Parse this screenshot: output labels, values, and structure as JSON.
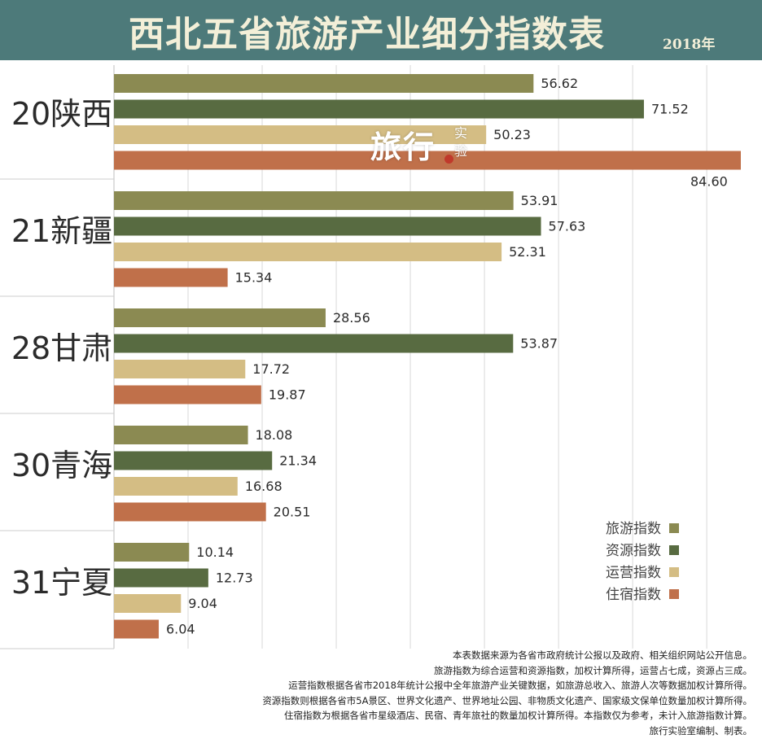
{
  "header": {
    "title": "西北五省旅游产业细分指数表",
    "year": "2018年",
    "background": "#4d7a7a"
  },
  "watermark": {
    "main": "旅行",
    "sub1": "实",
    "sub2": "验"
  },
  "chart_data": {
    "type": "bar",
    "orientation": "horizontal",
    "title": "西北五省旅游产业细分指数表",
    "categories": [
      "20陕西",
      "21新疆",
      "28甘肃",
      "30青海",
      "31宁夏"
    ],
    "series": [
      {
        "name": "旅游指数",
        "color": "#8b8a52",
        "values": [
          56.62,
          53.91,
          28.56,
          18.08,
          10.14
        ],
        "labels": [
          "56.62",
          "53.91",
          "28.56",
          "18.08",
          "10.14"
        ]
      },
      {
        "name": "资源指数",
        "color": "#586b41",
        "values": [
          71.52,
          57.63,
          53.87,
          21.34,
          12.73
        ],
        "labels": [
          "71.52",
          "57.63",
          "53.87",
          "21.34",
          "12.73"
        ]
      },
      {
        "name": "运营指数",
        "color": "#d4bd84",
        "values": [
          50.23,
          52.31,
          17.72,
          16.68,
          9.04
        ],
        "labels": [
          "50.23",
          "52.31",
          "17.72",
          "16.68",
          "9.04"
        ]
      },
      {
        "name": "住宿指数",
        "color": "#c0704a",
        "values": [
          84.6,
          15.34,
          19.87,
          20.51,
          6.04
        ],
        "labels": [
          "84.60",
          "15.34",
          "19.87",
          "20.51",
          "6.04"
        ]
      }
    ],
    "xlim": [
      0,
      85
    ],
    "grid": true,
    "legend_position": "bottom-right"
  },
  "notes": [
    "本表数据来源为各省市政府统计公报以及政府、相关组织网站公开信息。",
    "旅游指数为综合运营和资源指数，加权计算所得，运营占七成，资源占三成。",
    "运营指数根据各省市2018年统计公报中全年旅游产业关键数据，如旅游总收入、旅游人次等数据加权计算所得。",
    "资源指数则根据各省市5A景区、世界文化遗产、世界地址公园、非物质文化遗产、国家级文保单位数量加权计算所得。",
    "住宿指数为根据各省市星级酒店、民宿、青年旅社的数量加权计算所得。本指数仅为参考，未计入旅游指数计算。",
    "旅行实验室编制、制表。"
  ]
}
